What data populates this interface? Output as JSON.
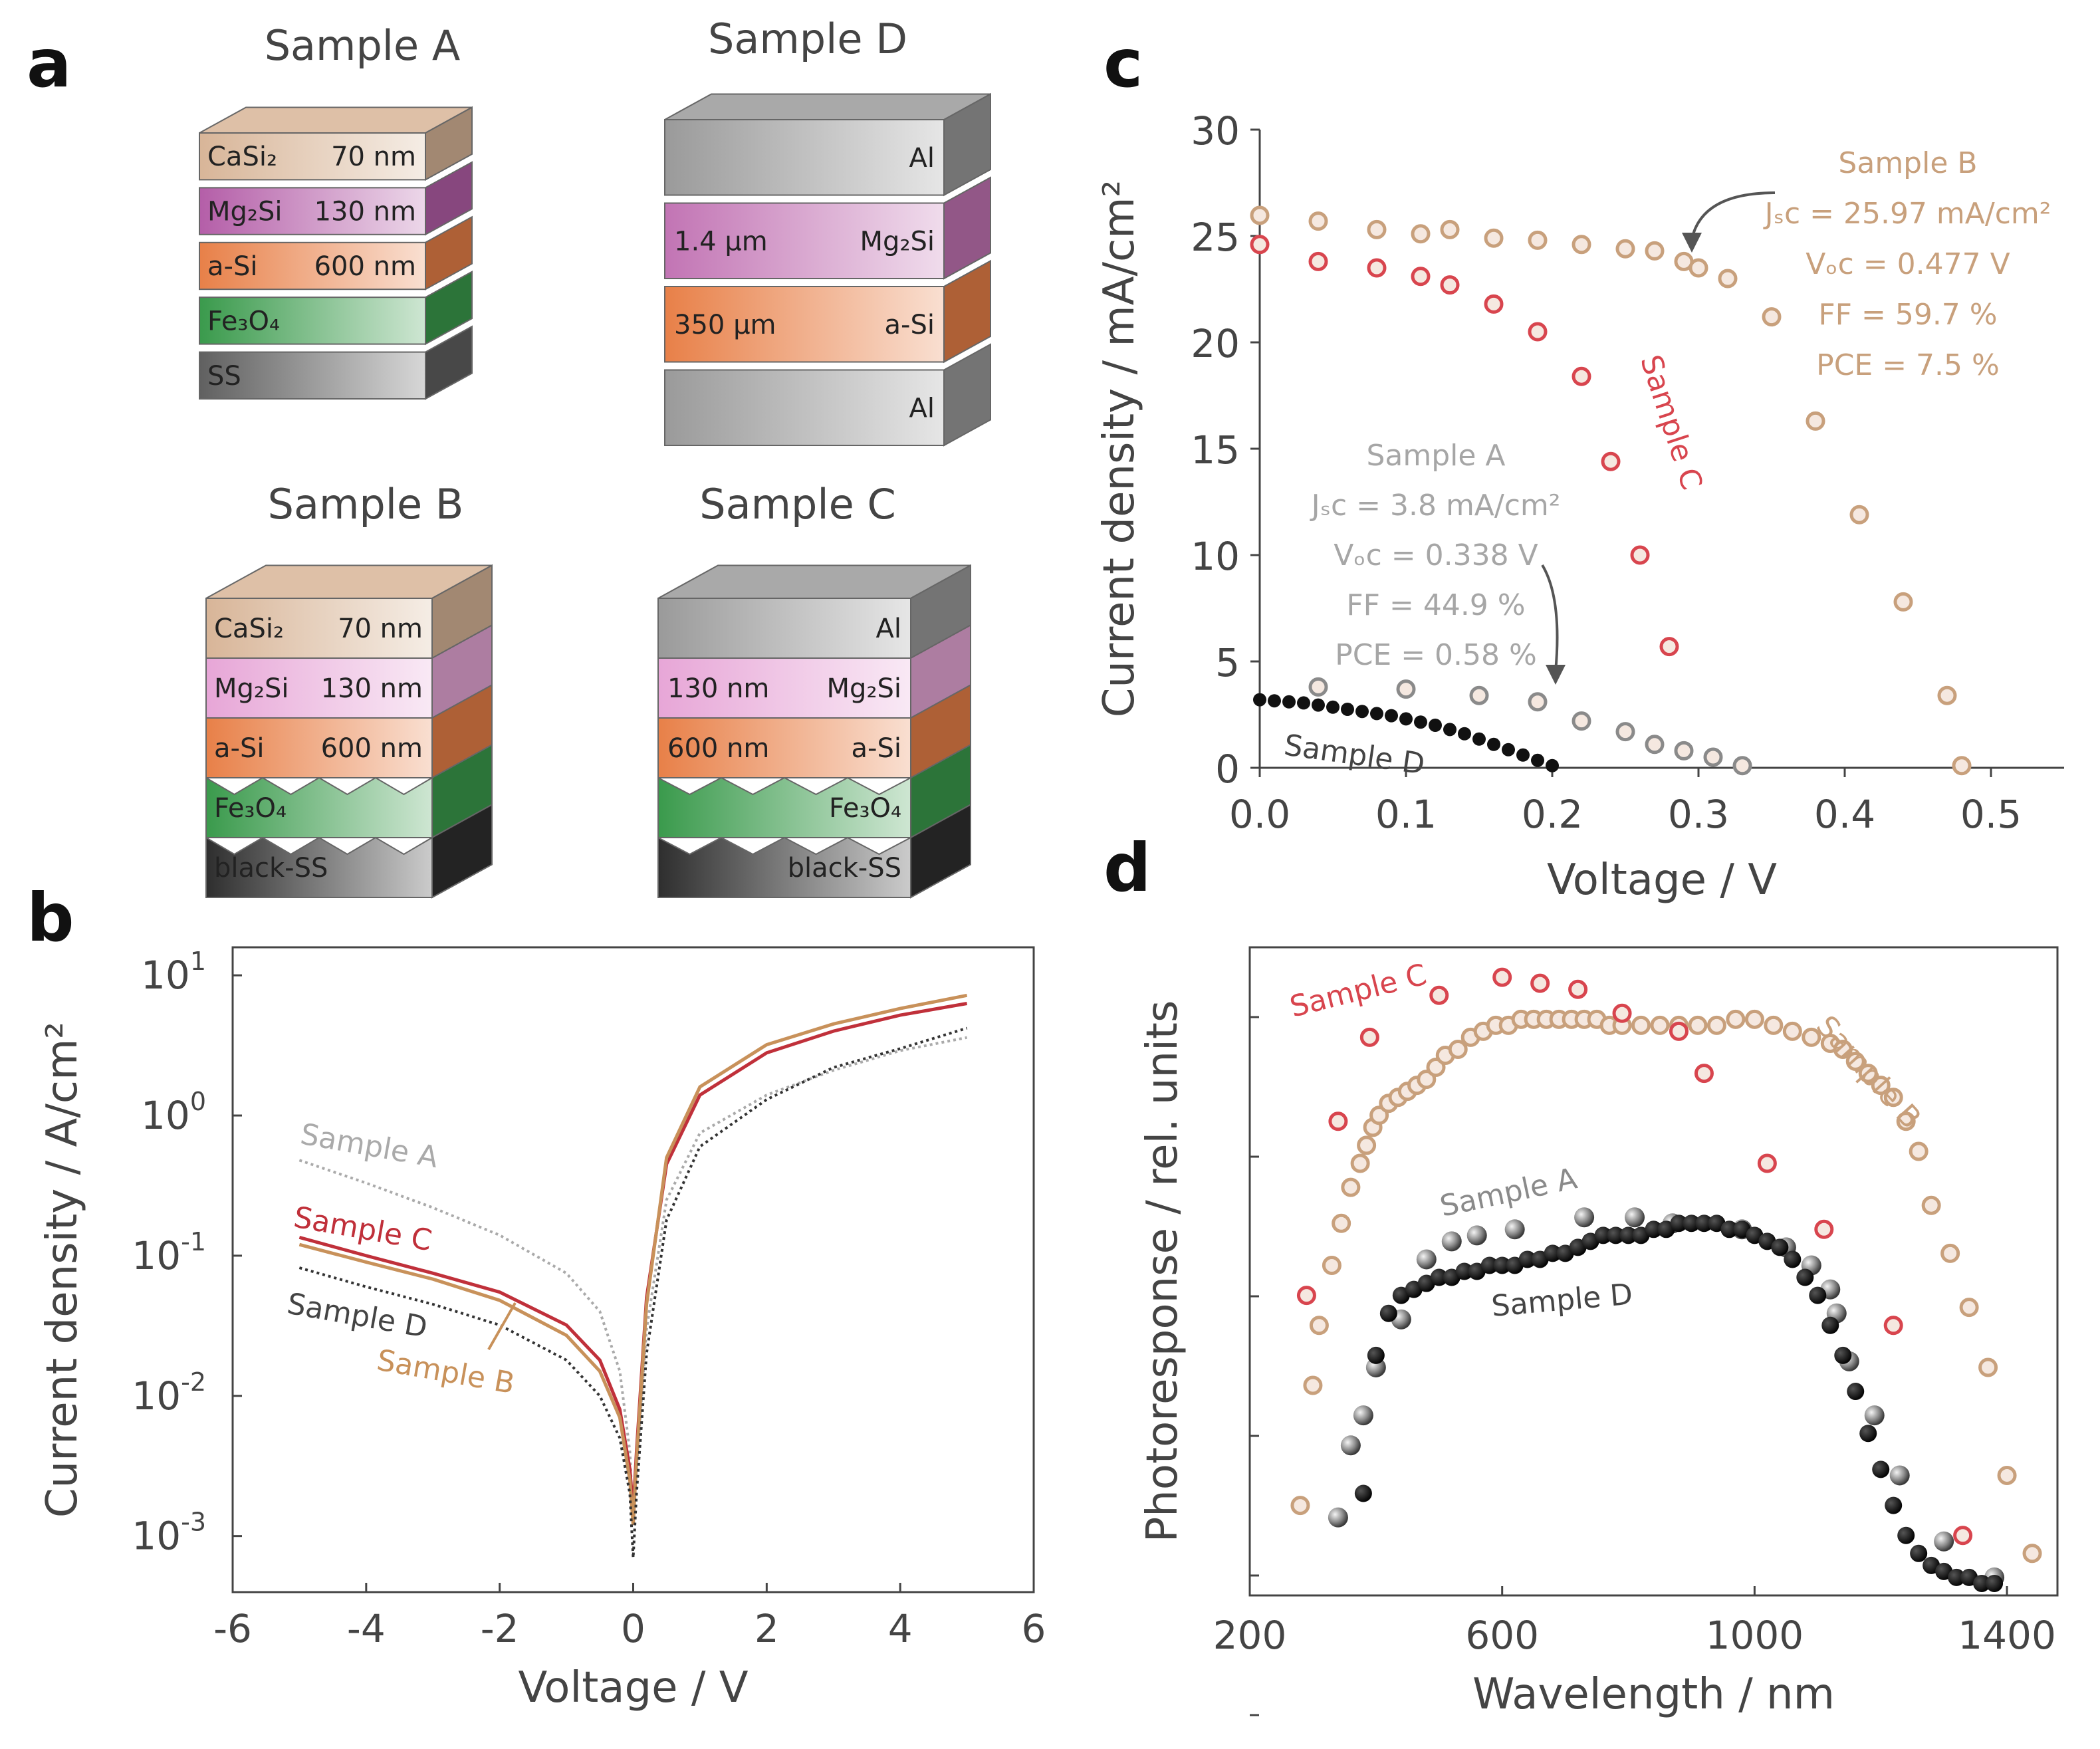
{
  "panel_a": {
    "letter": "a",
    "stacks": [
      {
        "title": "Sample A",
        "textured": false,
        "layers": [
          {
            "name": "CaSi₂",
            "thickness": "70 nm",
            "color": "#d8b598"
          },
          {
            "name": "Mg₂Si",
            "thickness": "130 nm",
            "color": "#b45ea8"
          },
          {
            "name": "a-Si",
            "thickness": "600 nm",
            "color": "#e88048"
          },
          {
            "name": "Fe₃O₄",
            "thickness": "",
            "color": "#3a9a4c"
          },
          {
            "name": "SS",
            "thickness": "",
            "color": "#606060"
          }
        ]
      },
      {
        "title": "Sample D",
        "textured": false,
        "layers": [
          {
            "name": "Al",
            "thickness": "",
            "color": "#9a9a9a"
          },
          {
            "name": "Mg₂Si",
            "thickness": "1.4 μm",
            "color": "#c274b4"
          },
          {
            "name": "a-Si",
            "thickness": "350 μm",
            "color": "#e88048"
          },
          {
            "name": "Al",
            "thickness": "",
            "color": "#9a9a9a"
          }
        ]
      },
      {
        "title": "Sample B",
        "textured": true,
        "layers": [
          {
            "name": "CaSi₂",
            "thickness": "70 nm",
            "color": "#d8b598"
          },
          {
            "name": "Mg₂Si",
            "thickness": "130 nm",
            "color": "#e7a6d7"
          },
          {
            "name": "a-Si",
            "thickness": "600 nm",
            "color": "#e88048"
          },
          {
            "name": "Fe₃O₄",
            "thickness": "",
            "color": "#3a9a4c"
          },
          {
            "name": "black-SS",
            "thickness": "",
            "color": "#2e2e2e"
          }
        ]
      },
      {
        "title": "Sample C",
        "textured": true,
        "layers": [
          {
            "name": "Al",
            "thickness": "",
            "color": "#9a9a9a"
          },
          {
            "name": "Mg₂Si",
            "thickness": "130 nm",
            "color": "#e7a6d7"
          },
          {
            "name": "a-Si",
            "thickness": "600 nm",
            "color": "#e88048"
          },
          {
            "name": "Fe₃O₄",
            "thickness": "",
            "color": "#3a9a4c"
          },
          {
            "name": "black-SS",
            "thickness": "",
            "color": "#2e2e2e"
          }
        ]
      }
    ]
  },
  "chart_data": [
    {
      "panel": "b",
      "type": "line",
      "xlabel": "Voltage / V",
      "ylabel": "Current density / A/cm²",
      "xlim": [
        -6,
        6
      ],
      "yscale": "log",
      "ylim_exp": [
        -3.4,
        1.2
      ],
      "xticks": [
        "-6",
        "-4",
        "-2",
        "0",
        "2",
        "4",
        "6"
      ],
      "yticks": [
        {
          "base": "10",
          "exp": "1"
        },
        {
          "base": "10",
          "exp": "0"
        },
        {
          "base": "10",
          "exp": "-1"
        },
        {
          "base": "10",
          "exp": "-2"
        },
        {
          "base": "10",
          "exp": "-3"
        }
      ],
      "series": [
        {
          "name": "Sample A",
          "color": "#aaaaaa",
          "style": "dotted",
          "label_color": "#aaaaaa",
          "x": [
            -5,
            -4,
            -3,
            -2,
            -1,
            -0.5,
            -0.2,
            -0.05,
            0,
            0.05,
            0.2,
            0.5,
            1,
            2,
            3,
            4,
            5
          ],
          "y": [
            0.48,
            0.33,
            0.22,
            0.14,
            0.075,
            0.04,
            0.015,
            0.004,
            0.0012,
            0.003,
            0.03,
            0.25,
            0.75,
            1.4,
            2.1,
            2.9,
            3.6
          ]
        },
        {
          "name": "Sample C",
          "color": "#c0303a",
          "style": "solid",
          "label_color": "#c0303a",
          "x": [
            -5,
            -4,
            -3,
            -2,
            -1,
            -0.5,
            -0.2,
            -0.05,
            0,
            0.05,
            0.2,
            0.5,
            1,
            2,
            3,
            4,
            5
          ],
          "y": [
            0.135,
            0.1,
            0.075,
            0.055,
            0.032,
            0.018,
            0.008,
            0.003,
            0.0015,
            0.004,
            0.05,
            0.45,
            1.4,
            2.8,
            4.0,
            5.2,
            6.3
          ]
        },
        {
          "name": "Sample B",
          "color": "#c8915a",
          "style": "solid",
          "label_color": "#c8915a",
          "x": [
            -5,
            -4,
            -3,
            -2,
            -1,
            -0.5,
            -0.2,
            -0.05,
            0,
            0.05,
            0.2,
            0.5,
            1,
            2,
            3,
            4,
            5
          ],
          "y": [
            0.12,
            0.09,
            0.068,
            0.048,
            0.027,
            0.015,
            0.007,
            0.0025,
            0.0012,
            0.0035,
            0.045,
            0.5,
            1.6,
            3.2,
            4.5,
            5.8,
            7.2
          ]
        },
        {
          "name": "Sample D",
          "color": "#333333",
          "style": "dotted",
          "label_color": "#444444",
          "x": [
            -5,
            -4,
            -3,
            -2,
            -1,
            -0.5,
            -0.2,
            -0.05,
            0,
            0.05,
            0.2,
            0.5,
            1,
            2,
            3,
            4,
            5
          ],
          "y": [
            0.082,
            0.06,
            0.045,
            0.032,
            0.018,
            0.01,
            0.005,
            0.002,
            0.0007,
            0.002,
            0.02,
            0.18,
            0.6,
            1.3,
            2.2,
            3.0,
            4.2
          ]
        }
      ]
    },
    {
      "panel": "c",
      "type": "scatter",
      "xlabel": "Voltage / V",
      "ylabel": "Current density / mA/cm²",
      "xlim": [
        0,
        0.55
      ],
      "ylim": [
        0,
        30
      ],
      "xticks": [
        "0.0",
        "0.1",
        "0.2",
        "0.3",
        "0.4",
        "0.5"
      ],
      "yticks": [
        "0",
        "5",
        "10",
        "15",
        "20",
        "25",
        "30"
      ],
      "series": [
        {
          "name": "Sample B",
          "color": "#c8a07c",
          "style": "ring",
          "x": [
            0.0,
            0.04,
            0.08,
            0.11,
            0.13,
            0.16,
            0.19,
            0.22,
            0.25,
            0.27,
            0.29,
            0.3,
            0.32,
            0.35,
            0.38,
            0.41,
            0.44,
            0.47,
            0.48
          ],
          "y": [
            25.97,
            25.7,
            25.3,
            25.1,
            25.3,
            24.9,
            24.8,
            24.6,
            24.4,
            24.3,
            23.8,
            23.5,
            23.0,
            21.2,
            16.3,
            11.9,
            7.8,
            3.4,
            0.1
          ]
        },
        {
          "name": "Sample C",
          "color": "#d8454e",
          "style": "ring",
          "x": [
            0.0,
            0.04,
            0.08,
            0.11,
            0.13,
            0.16,
            0.19,
            0.22,
            0.24,
            0.26,
            0.28
          ],
          "y": [
            24.6,
            23.8,
            23.5,
            23.1,
            22.7,
            21.8,
            20.5,
            18.4,
            14.4,
            10.0,
            5.7
          ]
        },
        {
          "name": "Sample A",
          "color": "#8a8a8a",
          "style": "ring",
          "x": [
            0.04,
            0.1,
            0.15,
            0.19,
            0.22,
            0.25,
            0.27,
            0.29,
            0.31,
            0.33
          ],
          "y": [
            3.8,
            3.7,
            3.4,
            3.1,
            2.2,
            1.7,
            1.1,
            0.8,
            0.5,
            0.1
          ]
        },
        {
          "name": "Sample D",
          "color": "#111111",
          "style": "filled",
          "x": [
            0.0,
            0.01,
            0.02,
            0.03,
            0.04,
            0.05,
            0.06,
            0.07,
            0.08,
            0.09,
            0.1,
            0.11,
            0.12,
            0.13,
            0.14,
            0.15,
            0.16,
            0.17,
            0.18,
            0.19,
            0.2
          ],
          "y": [
            3.2,
            3.15,
            3.1,
            3.05,
            2.95,
            2.85,
            2.75,
            2.65,
            2.55,
            2.45,
            2.3,
            2.15,
            2.0,
            1.8,
            1.6,
            1.35,
            1.1,
            0.85,
            0.6,
            0.35,
            0.1
          ]
        }
      ],
      "annotations": [
        {
          "series": "Sample B",
          "lines": [
            "Sample B",
            "Jₛᴄ = 25.97 mA/cm²",
            "Vₒᴄ = 0.477 V",
            "FF = 59.7 %",
            "PCE = 7.5 %"
          ],
          "color": "#c8a07c"
        },
        {
          "series": "Sample A",
          "lines": [
            "Sample A",
            "Jₛᴄ = 3.8 mA/cm²",
            "Vₒᴄ = 0.338 V",
            "FF = 44.9 %",
            "PCE = 0.58 %"
          ],
          "color": "#a6a6a6"
        },
        {
          "series": "Sample C",
          "lines": [
            "Sample C"
          ],
          "color": "#d8454e"
        },
        {
          "series": "Sample D",
          "lines": [
            "Sample D"
          ],
          "color": "#444444"
        }
      ]
    },
    {
      "panel": "d",
      "type": "scatter",
      "xlabel": "Wavelength / nm",
      "ylabel": "Photoresponse / rel. units",
      "xlim": [
        200,
        1480
      ],
      "ylim": [
        0,
        1.08
      ],
      "xticks": [
        "200",
        "600",
        "1000",
        "1400"
      ],
      "series": [
        {
          "name": "Sample B",
          "color": "#c8a07c",
          "style": "ring",
          "x": [
            280,
            300,
            310,
            330,
            345,
            360,
            375,
            385,
            395,
            405,
            420,
            435,
            450,
            465,
            480,
            495,
            510,
            530,
            550,
            570,
            590,
            610,
            630,
            650,
            670,
            690,
            710,
            730,
            750,
            770,
            790,
            820,
            850,
            880,
            910,
            940,
            970,
            1000,
            1030,
            1060,
            1090,
            1120,
            1140,
            1160,
            1180,
            1200,
            1220,
            1240,
            1260,
            1280,
            1310,
            1340,
            1370,
            1400,
            1440
          ],
          "y": [
            0.15,
            0.35,
            0.45,
            0.55,
            0.62,
            0.68,
            0.72,
            0.75,
            0.78,
            0.8,
            0.82,
            0.83,
            0.84,
            0.85,
            0.86,
            0.88,
            0.9,
            0.91,
            0.93,
            0.94,
            0.95,
            0.95,
            0.96,
            0.96,
            0.96,
            0.96,
            0.96,
            0.96,
            0.96,
            0.95,
            0.95,
            0.95,
            0.95,
            0.95,
            0.95,
            0.95,
            0.96,
            0.96,
            0.95,
            0.94,
            0.93,
            0.92,
            0.91,
            0.89,
            0.87,
            0.85,
            0.83,
            0.79,
            0.74,
            0.65,
            0.57,
            0.48,
            0.38,
            0.2,
            0.07
          ]
        },
        {
          "name": "Sample C",
          "color": "#d8454e",
          "style": "ring",
          "x": [
            290,
            340,
            390,
            500,
            600,
            660,
            720,
            790,
            880,
            920,
            1020,
            1110,
            1220,
            1330
          ],
          "y": [
            0.5,
            0.79,
            0.93,
            1.0,
            1.03,
            1.02,
            1.01,
            0.97,
            0.94,
            0.87,
            0.72,
            0.61,
            0.45,
            0.1
          ]
        },
        {
          "name": "Sample A",
          "color": "#6e6e6e",
          "style": "shaded",
          "x": [
            340,
            360,
            380,
            400,
            440,
            480,
            520,
            560,
            620,
            730,
            810,
            870,
            980,
            1050,
            1090,
            1120,
            1130,
            1150,
            1190,
            1230,
            1300,
            1380
          ],
          "y": [
            0.13,
            0.25,
            0.3,
            0.38,
            0.46,
            0.56,
            0.59,
            0.6,
            0.61,
            0.63,
            0.63,
            0.62,
            0.61,
            0.58,
            0.55,
            0.51,
            0.47,
            0.39,
            0.3,
            0.2,
            0.09,
            0.03
          ]
        },
        {
          "name": "Sample D",
          "color": "#111111",
          "style": "filled",
          "x": [
            380,
            400,
            420,
            440,
            460,
            480,
            500,
            520,
            540,
            560,
            580,
            600,
            620,
            640,
            660,
            680,
            700,
            720,
            740,
            760,
            780,
            800,
            820,
            840,
            860,
            880,
            900,
            920,
            940,
            960,
            980,
            1000,
            1020,
            1040,
            1060,
            1080,
            1100,
            1120,
            1140,
            1160,
            1180,
            1200,
            1220,
            1240,
            1260,
            1280,
            1300,
            1320,
            1340,
            1360,
            1380
          ],
          "y": [
            0.17,
            0.4,
            0.47,
            0.5,
            0.51,
            0.52,
            0.53,
            0.53,
            0.54,
            0.54,
            0.55,
            0.55,
            0.55,
            0.56,
            0.56,
            0.57,
            0.57,
            0.58,
            0.59,
            0.6,
            0.6,
            0.6,
            0.6,
            0.61,
            0.61,
            0.62,
            0.62,
            0.62,
            0.62,
            0.61,
            0.61,
            0.6,
            0.59,
            0.58,
            0.56,
            0.53,
            0.5,
            0.45,
            0.4,
            0.34,
            0.27,
            0.21,
            0.15,
            0.1,
            0.07,
            0.05,
            0.04,
            0.03,
            0.03,
            0.02,
            0.02
          ]
        }
      ],
      "annotations": [
        {
          "series": "Sample C",
          "lines": [
            "Sample C"
          ],
          "color": "#d8454e"
        },
        {
          "series": "Sample B",
          "lines": [
            "Sample B"
          ],
          "color": "#c8a07c"
        },
        {
          "series": "Sample A",
          "lines": [
            "Sample A"
          ],
          "color": "#8a8a8a"
        },
        {
          "series": "Sample D",
          "lines": [
            "Sample D"
          ],
          "color": "#444444"
        }
      ]
    }
  ]
}
